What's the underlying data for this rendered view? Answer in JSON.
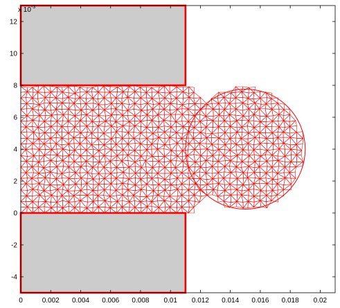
{
  "figure": {
    "exponent_label": "x 10",
    "exponent_power": "-3"
  },
  "chart_data": {
    "type": "mesh",
    "xlim": [
      0,
      0.021
    ],
    "ylim": [
      -0.005,
      0.013
    ],
    "x_ticks": [
      "0",
      "0.002",
      "0.004",
      "0.006",
      "0.008",
      "0.01",
      "0.012",
      "0.014",
      "0.016",
      "0.018",
      "0.02"
    ],
    "y_ticks": [
      "-4",
      "-2",
      "0",
      "2",
      "4",
      "6",
      "8",
      "10",
      "12"
    ],
    "colors": {
      "mesh": "#ff0000",
      "solid_fill": "#cccccc",
      "axis": "#000000"
    },
    "solid_regions": [
      {
        "name": "upper-block",
        "x": [
          0,
          0.011
        ],
        "y": [
          0.008,
          0.013
        ]
      },
      {
        "name": "lower-block",
        "x": [
          0,
          0.011
        ],
        "y": [
          -0.005,
          0.0
        ]
      }
    ],
    "meshed_domain": {
      "channel": {
        "x": [
          0,
          0.011
        ],
        "y": [
          0.0,
          0.008
        ]
      },
      "bulb_center": [
        0.015,
        0.004
      ],
      "bulb_radius": 0.004
    }
  }
}
